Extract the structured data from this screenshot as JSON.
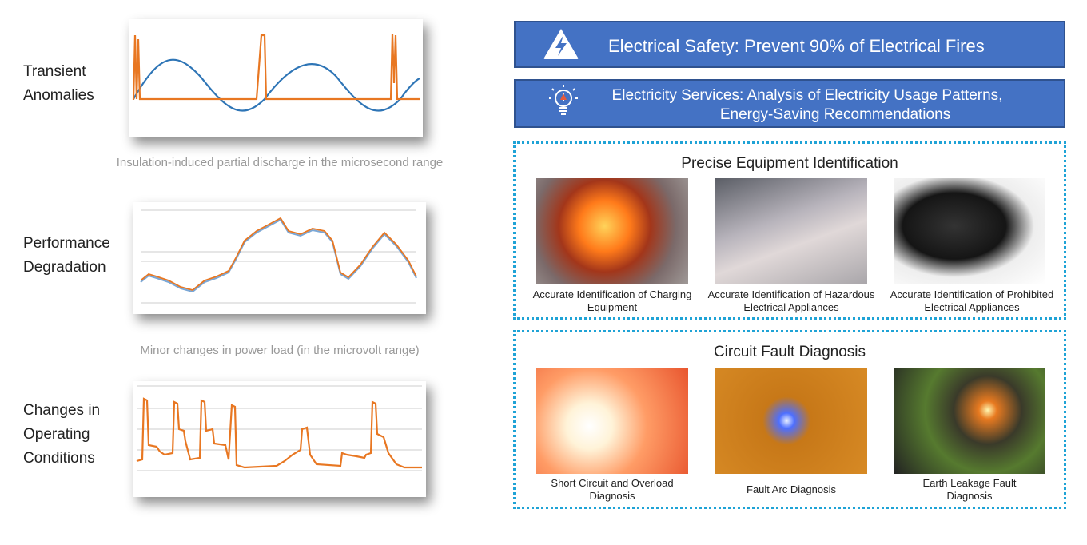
{
  "left": {
    "items": [
      {
        "label": "Transient Anomalies",
        "caption": "Insulation-induced partial discharge in the microsecond range"
      },
      {
        "label": "Performance Degradation",
        "caption": "Minor changes in power load (in the microvolt range)"
      },
      {
        "label": "Changes in Operating Conditions"
      }
    ]
  },
  "banners": [
    {
      "text": "Electrical Safety: Prevent 90% of Electrical Fires"
    },
    {
      "line1": "Electricity Services: Analysis of Electricity Usage Patterns,",
      "line2": "Energy-Saving Recommendations"
    }
  ],
  "sections": [
    {
      "title": "Precise Equipment Identification",
      "items": [
        {
          "caption": "Accurate Identification of Charging Equipment"
        },
        {
          "caption": "Accurate Identification of Hazardous Electrical Appliances"
        },
        {
          "caption": "Accurate Identification of Prohibited Electrical Appliances"
        }
      ]
    },
    {
      "title": "Circuit Fault Diagnosis",
      "items": [
        {
          "caption": "Short Circuit and Overload Diagnosis"
        },
        {
          "caption": "Fault Arc Diagnosis"
        },
        {
          "caption": "Earth Leakage Fault Diagnosis"
        }
      ]
    }
  ]
}
